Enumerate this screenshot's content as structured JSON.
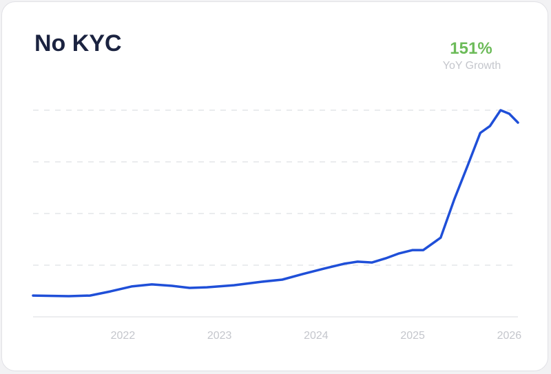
{
  "chart_data": {
    "type": "line",
    "title": "No KYC",
    "growth": "151%",
    "growth_label": "YoY Growth",
    "x": [
      2021.07,
      2021.44,
      2021.66,
      2021.87,
      2022.09,
      2022.3,
      2022.51,
      2022.69,
      2022.87,
      2023.15,
      2023.44,
      2023.65,
      2023.86,
      2024.08,
      2024.29,
      2024.43,
      2024.58,
      2024.72,
      2024.86,
      2025.0,
      2025.11,
      2025.29,
      2025.43,
      2025.57,
      2025.7,
      2025.8,
      2025.91,
      2026.0,
      2026.09
    ],
    "values": [
      10.3,
      10,
      10.3,
      12.3,
      14.7,
      15.7,
      15,
      14,
      14.3,
      15.3,
      17,
      18,
      20.7,
      23.3,
      25.7,
      26.7,
      26.3,
      28.3,
      30.7,
      32.3,
      32.3,
      38.3,
      56.7,
      73.3,
      89,
      92.3,
      100,
      98.3,
      94
    ],
    "color": "#1f4fd8",
    "xlim": [
      2021.07,
      2026.09
    ],
    "xticks": [
      2022,
      2023,
      2024,
      2025,
      2026
    ],
    "ylim": [
      0,
      100
    ],
    "yticks": [
      0,
      25,
      50,
      75,
      100
    ],
    "grid": true
  }
}
